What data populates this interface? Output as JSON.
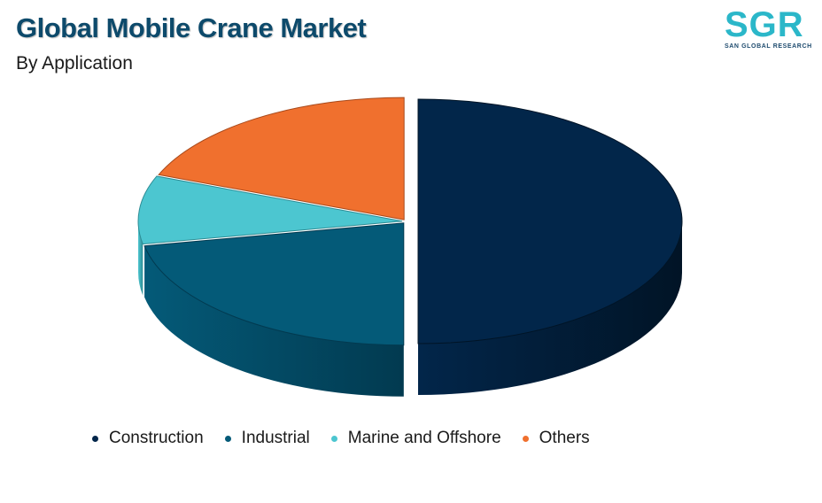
{
  "header": {
    "title": "Global Mobile Crane Market",
    "subtitle": "By Application"
  },
  "logo": {
    "letters": "SGR",
    "tagline": "SAN GLOBAL RESEARCH",
    "color": "#2bb7c9"
  },
  "chart_data": {
    "type": "pie",
    "title": "Global Mobile Crane Market",
    "subtitle": "By Application",
    "style": "3d-exploded",
    "legend_position": "bottom",
    "categories": [
      "Construction",
      "Industrial",
      "Marine and Offshore",
      "Others"
    ],
    "values": [
      50,
      22,
      9,
      19
    ],
    "colors": [
      "#02264a",
      "#045a78",
      "#4cc6d0",
      "#f0702e"
    ],
    "side_colors": [
      "#011426",
      "#023a50",
      "#2e8c94",
      "#a84a1c"
    ]
  }
}
